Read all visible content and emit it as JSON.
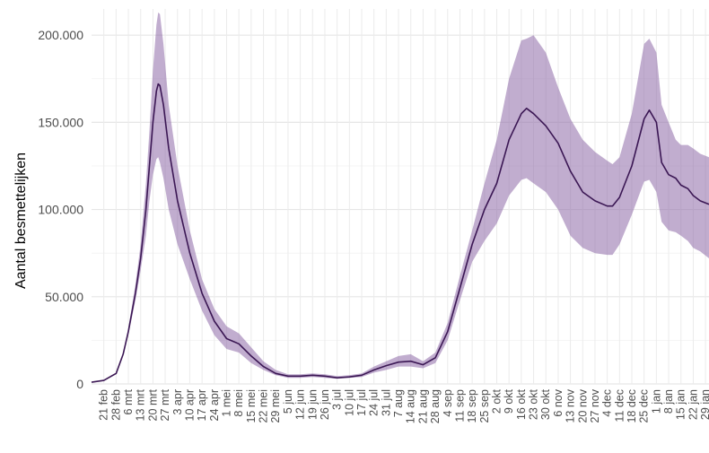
{
  "chart_data": {
    "type": "area",
    "ylabel": "Aantal besmettelijken",
    "xlabel": "",
    "ylim": [
      0,
      215000
    ],
    "y_ticks": [
      {
        "value": 0,
        "label": "0"
      },
      {
        "value": 50000,
        "label": "50.000"
      },
      {
        "value": 100000,
        "label": "100.000"
      },
      {
        "value": 150000,
        "label": "150.000"
      },
      {
        "value": 200000,
        "label": "200.000"
      }
    ],
    "x_tick_labels": [
      "21 feb",
      "28 feb",
      "6 mrt",
      "13 mrt",
      "20 mrt",
      "27 mrt",
      "3 apr",
      "10 apr",
      "17 apr",
      "24 apr",
      "1 mei",
      "8 mei",
      "15 mei",
      "22 mei",
      "29 mei",
      "5 jun",
      "12 jun",
      "19 jun",
      "26 jun",
      "3 jul",
      "10 jul",
      "17 jul",
      "24 jul",
      "31 jul",
      "7 aug",
      "14 aug",
      "21 aug",
      "28 aug",
      "4 sep",
      "11 sep",
      "18 sep",
      "25 sep",
      "2 okt",
      "9 okt",
      "16 okt",
      "23 okt",
      "30 okt",
      "6 nov",
      "13 nov",
      "20 nov",
      "27 nov",
      "4 dec",
      "11 dec",
      "18 dec",
      "25 dec",
      "1 jan",
      "8 jan",
      "15 jan",
      "22 jan",
      "29 jan"
    ],
    "x_range": [
      "2020-02-14",
      "2021-01-31"
    ],
    "grid": true,
    "series": [
      {
        "line_color": "#3b1754",
        "band_color": "#8e6aa8",
        "points": [
          [
            "2020-02-14",
            1000,
            1000,
            1000
          ],
          [
            "2020-02-21",
            2000,
            2000,
            2000
          ],
          [
            "2020-02-28",
            6000,
            6000,
            6000
          ],
          [
            "2020-03-03",
            17000,
            16000,
            18000
          ],
          [
            "2020-03-06",
            30000,
            28000,
            32000
          ],
          [
            "2020-03-10",
            52000,
            48000,
            57000
          ],
          [
            "2020-03-13",
            72000,
            65000,
            80000
          ],
          [
            "2020-03-16",
            100000,
            85000,
            115000
          ],
          [
            "2020-03-18",
            125000,
            105000,
            145000
          ],
          [
            "2020-03-20",
            150000,
            120000,
            180000
          ],
          [
            "2020-03-22",
            168000,
            129000,
            206000
          ],
          [
            "2020-03-23",
            172000,
            130000,
            213000
          ],
          [
            "2020-03-24",
            171000,
            127000,
            212000
          ],
          [
            "2020-03-26",
            160000,
            118000,
            195000
          ],
          [
            "2020-03-29",
            135000,
            100000,
            160000
          ],
          [
            "2020-04-03",
            105000,
            80000,
            125000
          ],
          [
            "2020-04-10",
            75000,
            60000,
            88000
          ],
          [
            "2020-04-17",
            52000,
            42000,
            60000
          ],
          [
            "2020-04-24",
            36000,
            28000,
            43000
          ],
          [
            "2020-05-01",
            26000,
            20000,
            33000
          ],
          [
            "2020-05-08",
            23000,
            18000,
            29000
          ],
          [
            "2020-05-15",
            16000,
            12000,
            21000
          ],
          [
            "2020-05-22",
            10000,
            8000,
            13000
          ],
          [
            "2020-05-29",
            6000,
            5000,
            8000
          ],
          [
            "2020-06-05",
            4500,
            3500,
            5500
          ],
          [
            "2020-06-12",
            4500,
            3500,
            5500
          ],
          [
            "2020-06-19",
            5000,
            4000,
            6000
          ],
          [
            "2020-06-26",
            4500,
            3500,
            5500
          ],
          [
            "2020-07-03",
            3500,
            3000,
            4500
          ],
          [
            "2020-07-10",
            4000,
            3500,
            5000
          ],
          [
            "2020-07-17",
            5000,
            4000,
            6000
          ],
          [
            "2020-07-24",
            8000,
            6500,
            10000
          ],
          [
            "2020-07-31",
            10500,
            8000,
            13000
          ],
          [
            "2020-08-07",
            12500,
            10000,
            16000
          ],
          [
            "2020-08-14",
            13000,
            10000,
            17000
          ],
          [
            "2020-08-21",
            11000,
            9000,
            13000
          ],
          [
            "2020-08-28",
            15000,
            12000,
            18000
          ],
          [
            "2020-09-04",
            30000,
            25000,
            35000
          ],
          [
            "2020-09-11",
            55000,
            48000,
            62000
          ],
          [
            "2020-09-18",
            80000,
            70000,
            88000
          ],
          [
            "2020-09-25",
            100000,
            82000,
            115000
          ],
          [
            "2020-10-02",
            115000,
            92000,
            140000
          ],
          [
            "2020-10-09",
            140000,
            108000,
            175000
          ],
          [
            "2020-10-16",
            155000,
            117000,
            197000
          ],
          [
            "2020-10-19",
            158000,
            118000,
            198000
          ],
          [
            "2020-10-23",
            155000,
            115000,
            200000
          ],
          [
            "2020-10-30",
            148000,
            110000,
            190000
          ],
          [
            "2020-11-06",
            138000,
            100000,
            170000
          ],
          [
            "2020-11-13",
            122000,
            85000,
            152000
          ],
          [
            "2020-11-20",
            110000,
            78000,
            140000
          ],
          [
            "2020-11-27",
            105000,
            75000,
            133000
          ],
          [
            "2020-12-04",
            102000,
            74000,
            128000
          ],
          [
            "2020-12-07",
            102000,
            74000,
            126000
          ],
          [
            "2020-12-11",
            107000,
            80000,
            130000
          ],
          [
            "2020-12-18",
            125000,
            97000,
            155000
          ],
          [
            "2020-12-25",
            152000,
            116000,
            195000
          ],
          [
            "2020-12-28",
            157000,
            117000,
            198000
          ],
          [
            "2021-01-01",
            150000,
            110000,
            190000
          ],
          [
            "2021-01-04",
            127000,
            93000,
            160000
          ],
          [
            "2021-01-08",
            120000,
            88000,
            150000
          ],
          [
            "2021-01-12",
            118000,
            87000,
            140000
          ],
          [
            "2021-01-15",
            114000,
            85000,
            137000
          ],
          [
            "2021-01-19",
            112000,
            82000,
            137000
          ],
          [
            "2021-01-22",
            108000,
            78000,
            135000
          ],
          [
            "2021-01-26",
            105000,
            76000,
            132000
          ],
          [
            "2021-01-31",
            103000,
            72000,
            130000
          ]
        ]
      }
    ]
  }
}
